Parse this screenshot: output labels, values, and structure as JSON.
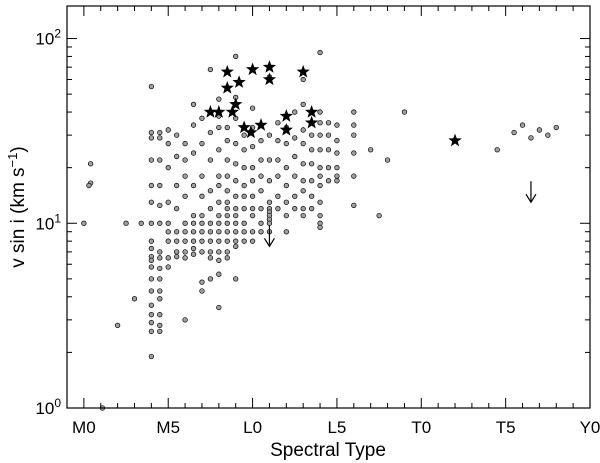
{
  "chart_data": {
    "type": "scatter",
    "xlabel": "Spectral Type",
    "ylabel": {
      "base": "v sin i (km s",
      "superscript": "−1",
      "close": ")"
    },
    "x_ticks": [
      {
        "label": "M0",
        "value": 0
      },
      {
        "label": "M5",
        "value": 5
      },
      {
        "label": "L0",
        "value": 10
      },
      {
        "label": "L5",
        "value": 15
      },
      {
        "label": "T0",
        "value": 20
      },
      {
        "label": "T5",
        "value": 25
      },
      {
        "label": "Y0",
        "value": 30
      }
    ],
    "y_ticks": [
      {
        "base": "10",
        "exp": "0",
        "value": 1
      },
      {
        "base": "10",
        "exp": "1",
        "value": 10
      },
      {
        "base": "10",
        "exp": "2",
        "value": 100
      }
    ],
    "xlim": [
      -1,
      30
    ],
    "ylim": [
      1,
      150
    ],
    "yscale": "log",
    "grid": false,
    "legend": "none",
    "colors": {
      "circle_fill": "#a0a0a0",
      "stroke": "#000000"
    },
    "series": [
      {
        "marker": "circle",
        "points": [
          [
            0.4,
            21
          ],
          [
            0.4,
            16.5
          ],
          [
            0.3,
            16
          ],
          [
            0,
            10
          ],
          [
            1.1,
            1
          ],
          [
            2,
            2.8
          ],
          [
            2.5,
            10
          ],
          [
            3,
            3.9
          ],
          [
            3.4,
            10
          ],
          [
            4,
            55
          ],
          [
            4,
            31
          ],
          [
            4,
            29
          ],
          [
            4,
            22
          ],
          [
            4,
            16
          ],
          [
            4,
            13
          ],
          [
            4,
            10
          ],
          [
            4,
            8
          ],
          [
            4,
            7.3
          ],
          [
            4,
            6.6
          ],
          [
            4,
            6.3
          ],
          [
            4,
            5.8
          ],
          [
            4,
            5
          ],
          [
            4,
            4.3
          ],
          [
            4,
            3.6
          ],
          [
            4,
            3.2
          ],
          [
            4,
            2.9
          ],
          [
            4,
            2.6
          ],
          [
            4,
            1.9
          ],
          [
            4.5,
            31
          ],
          [
            4.5,
            29
          ],
          [
            4.5,
            22
          ],
          [
            4.5,
            16
          ],
          [
            4.5,
            12.5
          ],
          [
            4.5,
            10
          ],
          [
            4.5,
            7
          ],
          [
            4.5,
            6.5
          ],
          [
            4.5,
            5.7
          ],
          [
            4.5,
            5
          ],
          [
            4.5,
            4.3
          ],
          [
            4.5,
            3.9
          ],
          [
            4.5,
            3.2
          ],
          [
            4.5,
            2.8
          ],
          [
            4.5,
            2.6
          ],
          [
            5,
            32
          ],
          [
            5,
            27
          ],
          [
            5,
            20
          ],
          [
            5,
            13
          ],
          [
            5,
            10
          ],
          [
            5,
            9
          ],
          [
            5,
            8
          ],
          [
            5,
            6.5
          ],
          [
            5,
            5.8
          ],
          [
            5.5,
            30
          ],
          [
            5.5,
            23
          ],
          [
            5.5,
            16
          ],
          [
            5.5,
            12
          ],
          [
            5.5,
            9
          ],
          [
            5.5,
            8
          ],
          [
            5.5,
            7
          ],
          [
            5.5,
            6.6
          ],
          [
            6,
            27
          ],
          [
            6,
            22
          ],
          [
            6,
            18
          ],
          [
            6,
            14
          ],
          [
            6,
            10
          ],
          [
            6,
            9
          ],
          [
            6,
            8
          ],
          [
            6,
            7
          ],
          [
            6,
            6.5
          ],
          [
            6,
            3
          ],
          [
            6.5,
            44
          ],
          [
            6.5,
            34
          ],
          [
            6.5,
            24
          ],
          [
            6.5,
            16
          ],
          [
            6.5,
            11
          ],
          [
            6.5,
            10
          ],
          [
            6.5,
            9
          ],
          [
            6.5,
            8
          ],
          [
            6.5,
            7.3
          ],
          [
            6.5,
            6.8
          ],
          [
            7,
            37
          ],
          [
            7,
            27
          ],
          [
            7,
            18
          ],
          [
            7,
            14
          ],
          [
            7,
            11
          ],
          [
            7,
            10
          ],
          [
            7,
            9
          ],
          [
            7,
            8
          ],
          [
            7,
            7
          ],
          [
            7,
            4.8
          ],
          [
            7,
            4.3
          ],
          [
            7.5,
            68
          ],
          [
            7.5,
            31
          ],
          [
            7.5,
            22
          ],
          [
            7.5,
            15
          ],
          [
            7.5,
            12
          ],
          [
            7.5,
            10
          ],
          [
            7.5,
            9
          ],
          [
            7.5,
            8
          ],
          [
            7.5,
            7
          ],
          [
            7.5,
            6.5
          ],
          [
            7.5,
            5
          ],
          [
            8,
            47
          ],
          [
            8,
            38
          ],
          [
            8,
            33
          ],
          [
            8,
            25
          ],
          [
            8,
            18
          ],
          [
            8,
            16
          ],
          [
            8,
            13
          ],
          [
            8,
            11
          ],
          [
            8,
            10
          ],
          [
            8,
            9
          ],
          [
            8,
            8
          ],
          [
            8,
            7
          ],
          [
            8,
            6.3
          ],
          [
            8,
            5.3
          ],
          [
            8,
            3.5
          ],
          [
            8.5,
            33
          ],
          [
            8.5,
            28
          ],
          [
            8.5,
            22
          ],
          [
            8.5,
            18
          ],
          [
            8.5,
            15
          ],
          [
            8.5,
            13
          ],
          [
            8.5,
            12
          ],
          [
            8.5,
            11
          ],
          [
            8.5,
            10
          ],
          [
            8.5,
            9
          ],
          [
            8.5,
            8
          ],
          [
            8.5,
            7
          ],
          [
            8.5,
            6.5
          ],
          [
            9,
            80
          ],
          [
            9,
            48
          ],
          [
            9,
            37
          ],
          [
            9,
            27
          ],
          [
            9,
            21
          ],
          [
            9,
            17
          ],
          [
            9,
            14
          ],
          [
            9,
            12
          ],
          [
            9,
            11
          ],
          [
            9,
            10
          ],
          [
            9,
            9
          ],
          [
            9,
            8
          ],
          [
            9,
            7.5
          ],
          [
            9,
            5
          ],
          [
            9.5,
            30
          ],
          [
            9.5,
            25
          ],
          [
            9.5,
            20
          ],
          [
            9.5,
            16
          ],
          [
            9.5,
            14
          ],
          [
            9.5,
            12
          ],
          [
            9.5,
            10
          ],
          [
            9.5,
            9
          ],
          [
            9.5,
            8
          ],
          [
            10,
            42
          ],
          [
            10,
            33
          ],
          [
            10,
            26
          ],
          [
            10,
            20
          ],
          [
            10,
            17
          ],
          [
            10,
            14
          ],
          [
            10,
            12
          ],
          [
            10,
            11
          ],
          [
            10,
            9
          ],
          [
            10,
            8
          ],
          [
            10.5,
            28
          ],
          [
            10.5,
            22
          ],
          [
            10.5,
            18
          ],
          [
            10.5,
            15
          ],
          [
            10.5,
            12
          ],
          [
            10.5,
            10
          ],
          [
            10.5,
            9
          ],
          [
            11,
            62
          ],
          [
            11,
            30
          ],
          [
            11,
            22
          ],
          [
            11,
            17
          ],
          [
            11,
            13
          ],
          [
            11,
            12
          ],
          [
            11,
            11.5
          ],
          [
            11,
            11
          ],
          [
            11,
            10.5
          ],
          [
            11,
            10
          ],
          [
            11,
            9
          ],
          [
            11.5,
            35
          ],
          [
            11.5,
            28
          ],
          [
            11.5,
            22
          ],
          [
            11.5,
            18
          ],
          [
            11.5,
            14
          ],
          [
            11.5,
            12
          ],
          [
            12,
            33
          ],
          [
            12,
            27
          ],
          [
            12,
            20
          ],
          [
            12,
            16
          ],
          [
            12,
            13
          ],
          [
            12,
            11
          ],
          [
            12,
            9
          ],
          [
            12.5,
            40
          ],
          [
            12.5,
            29
          ],
          [
            12.5,
            23
          ],
          [
            12.5,
            18
          ],
          [
            12.5,
            14
          ],
          [
            12.5,
            12
          ],
          [
            13,
            60
          ],
          [
            13,
            44
          ],
          [
            13,
            32
          ],
          [
            13,
            27
          ],
          [
            13,
            21
          ],
          [
            13,
            17
          ],
          [
            13,
            15
          ],
          [
            13,
            12
          ],
          [
            13,
            11
          ],
          [
            13.5,
            30
          ],
          [
            13.5,
            25
          ],
          [
            13.5,
            21
          ],
          [
            13.5,
            17
          ],
          [
            13.5,
            14
          ],
          [
            13.5,
            12
          ],
          [
            14,
            84
          ],
          [
            14,
            40
          ],
          [
            14,
            35
          ],
          [
            14,
            30
          ],
          [
            14,
            25
          ],
          [
            14,
            20
          ],
          [
            14,
            18
          ],
          [
            14,
            16
          ],
          [
            14,
            13
          ],
          [
            14,
            11
          ],
          [
            14,
            10
          ],
          [
            14,
            9.5
          ],
          [
            14.5,
            35
          ],
          [
            14.5,
            30
          ],
          [
            14.5,
            25
          ],
          [
            14.5,
            20
          ],
          [
            14.5,
            17
          ],
          [
            15,
            34
          ],
          [
            15,
            28
          ],
          [
            15,
            24
          ],
          [
            15,
            20
          ],
          [
            15,
            18
          ],
          [
            15,
            17
          ],
          [
            16,
            40
          ],
          [
            16,
            34
          ],
          [
            16,
            30
          ],
          [
            16,
            24
          ],
          [
            16,
            18
          ],
          [
            16,
            12.5
          ],
          [
            17,
            25
          ],
          [
            17.5,
            11
          ],
          [
            18,
            22
          ],
          [
            19,
            40
          ],
          [
            24.5,
            25
          ],
          [
            25.5,
            31
          ],
          [
            26,
            34
          ],
          [
            26.5,
            29
          ],
          [
            27,
            32
          ],
          [
            27.5,
            30
          ],
          [
            28,
            33
          ]
        ]
      },
      {
        "marker": "star",
        "points": [
          [
            7.5,
            40
          ],
          [
            8,
            40
          ],
          [
            8.5,
            54
          ],
          [
            8.5,
            66
          ],
          [
            8.8,
            40
          ],
          [
            9,
            44
          ],
          [
            9.2,
            58
          ],
          [
            9.5,
            33
          ],
          [
            9.9,
            31
          ],
          [
            10,
            68
          ],
          [
            10.5,
            34
          ],
          [
            11,
            70
          ],
          [
            11,
            60
          ],
          [
            12,
            38
          ],
          [
            12,
            32
          ],
          [
            13,
            66
          ],
          [
            13.5,
            40
          ],
          [
            13.5,
            35
          ],
          [
            22,
            28
          ]
        ]
      },
      {
        "marker": "upper-limit-arrow",
        "points": [
          [
            11,
            7.5
          ],
          [
            26.5,
            13
          ]
        ]
      }
    ]
  }
}
